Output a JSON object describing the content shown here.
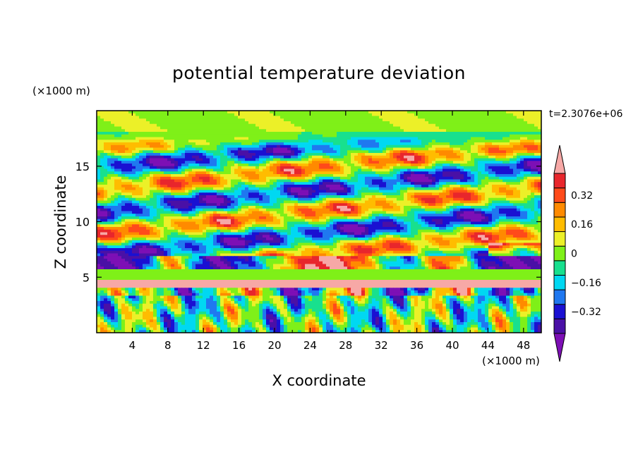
{
  "chart_data": {
    "type": "heatmap",
    "title": "potential temperature deviation",
    "xlabel": "X coordinate",
    "ylabel": "Z coordinate",
    "x_unit_label": "(×1000 m)",
    "y_unit_label": "(×1000 m)",
    "time_label": "t=2.3076e+06",
    "xlim": [
      0,
      50
    ],
    "ylim": [
      0,
      20
    ],
    "x_ticks": [
      4,
      8,
      12,
      16,
      20,
      24,
      28,
      32,
      36,
      40,
      44,
      48
    ],
    "y_ticks": [
      5,
      10,
      15
    ],
    "colorbar": {
      "levels": [
        -0.48,
        -0.4,
        -0.32,
        -0.24,
        -0.16,
        -0.08,
        0,
        0.08,
        0.16,
        0.24,
        0.32,
        0.4,
        0.48
      ],
      "tick_values": [
        -0.32,
        -0.16,
        0,
        0.16,
        0.32
      ],
      "tick_labels": [
        "−0.32",
        "−0.16",
        "0",
        "0.16",
        "0.32"
      ],
      "colors": [
        "#7d0fb5",
        "#4a10a6",
        "#1a10d2",
        "#1f78f0",
        "#00d8f2",
        "#18e08e",
        "#7ff018",
        "#ecf028",
        "#ffbc00",
        "#ff8a00",
        "#ff4a1a",
        "#e8262c",
        "#f7a8a6"
      ],
      "extend": "both"
    },
    "field_bands": [
      {
        "z_range": [
          0,
          4
        ],
        "description": "upright cellular convection below the inversion"
      },
      {
        "z_range": [
          4,
          4.8
        ],
        "value": 0.48,
        "description": "warm inversion layer"
      },
      {
        "z_range": [
          4.8,
          5.6
        ],
        "value": 0.06,
        "description": "neutral layer"
      },
      {
        "z_range": [
          5.6,
          7
        ],
        "description": "cold layer with warm clumps near x=20-33"
      },
      {
        "z_range": [
          7,
          18
        ],
        "description": "tilted alternating warm/cold wave bands"
      },
      {
        "z_range": [
          18,
          20
        ],
        "value": 0.05,
        "description": "near-neutral top"
      }
    ]
  }
}
